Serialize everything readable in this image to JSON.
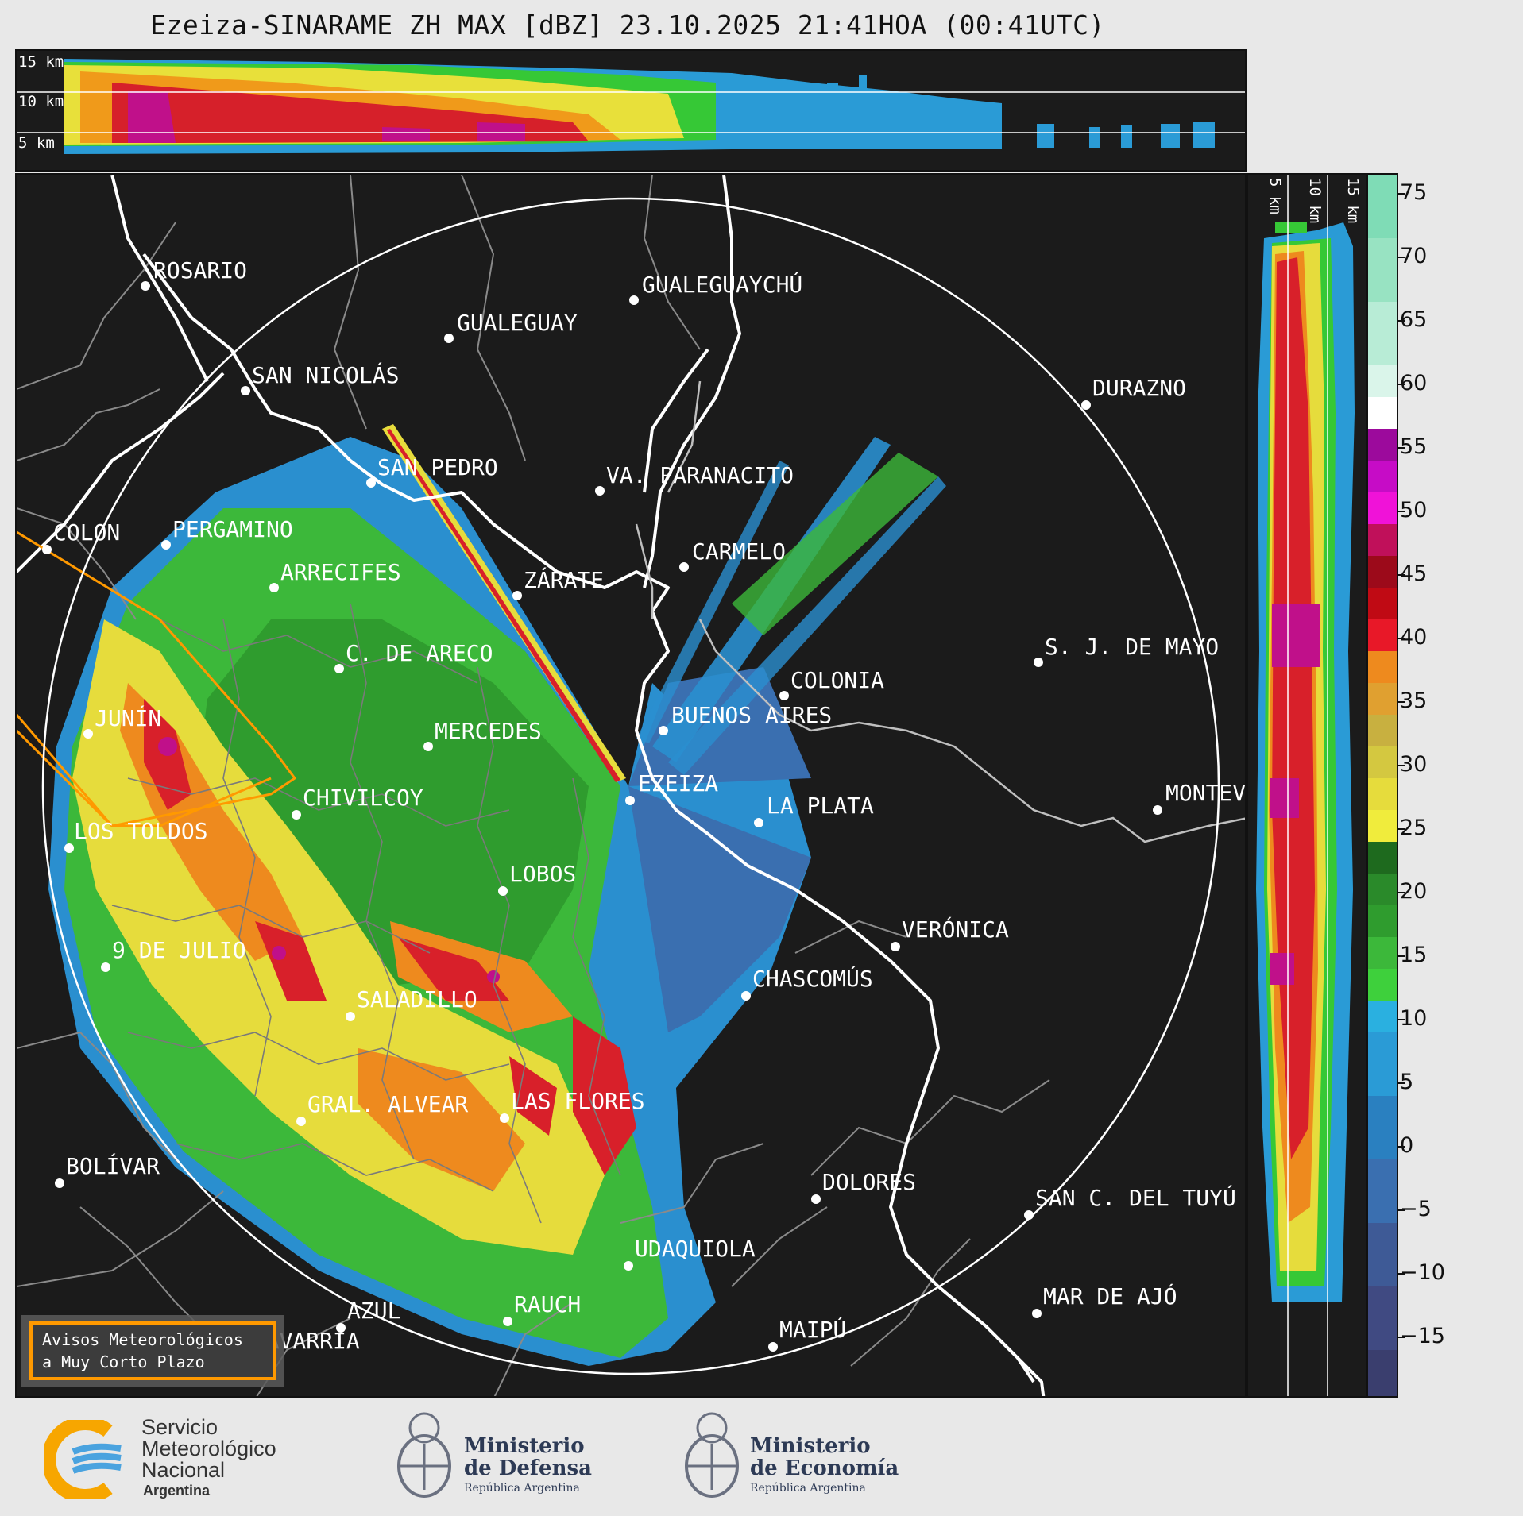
{
  "title": "Ezeiza-SINARAME ZH MAX [dBZ] 23.10.2025 21:41HOA (00:41UTC)",
  "top_panel": {
    "height_labels": [
      "15 km",
      "10 km",
      "5 km"
    ]
  },
  "side_panel": {
    "height_labels": [
      "5 km",
      "10 km",
      "15 km"
    ]
  },
  "colorbar": {
    "unit": "dBZ",
    "ticks": [
      "75",
      "70",
      "65",
      "60",
      "55",
      "50",
      "45",
      "40",
      "35",
      "30",
      "25",
      "20",
      "15",
      "10",
      "5",
      "0",
      "−5",
      "−10",
      "−15"
    ],
    "range": [
      -20,
      77
    ]
  },
  "cities": [
    {
      "name": "ROSARIO"
    },
    {
      "name": "GUALEGUAYCHÚ"
    },
    {
      "name": "GUALEGUAY"
    },
    {
      "name": "SAN NICOLÁS"
    },
    {
      "name": "DURAZNO"
    },
    {
      "name": "SAN PEDRO"
    },
    {
      "name": "VA. PARANACITO"
    },
    {
      "name": "COLON"
    },
    {
      "name": "PERGAMINO"
    },
    {
      "name": "CARMELO"
    },
    {
      "name": "ARRECIFES"
    },
    {
      "name": "ZÁRATE"
    },
    {
      "name": "S. J. DE MAYO"
    },
    {
      "name": "C. DE ARECO"
    },
    {
      "name": "COLONIA"
    },
    {
      "name": "JUNÍN"
    },
    {
      "name": "MERCEDES"
    },
    {
      "name": "BUENOS AIRES"
    },
    {
      "name": "EZEIZA"
    },
    {
      "name": "MONTEVIDEO"
    },
    {
      "name": "CHIVILCOY"
    },
    {
      "name": "LA PLATA"
    },
    {
      "name": "LOS TOLDOS"
    },
    {
      "name": "LOBOS"
    },
    {
      "name": "VERÓNICA"
    },
    {
      "name": "9 DE JULIO"
    },
    {
      "name": "CHASCOMÚS"
    },
    {
      "name": "SALADILLO"
    },
    {
      "name": "GRAL. ALVEAR"
    },
    {
      "name": "LAS FLORES"
    },
    {
      "name": "BOLÍVAR"
    },
    {
      "name": "DOLORES"
    },
    {
      "name": "SAN C. DEL TUYÚ"
    },
    {
      "name": "UDAQUIOLA"
    },
    {
      "name": "MAR DE AJÓ"
    },
    {
      "name": "AZUL"
    },
    {
      "name": "RAUCH"
    },
    {
      "name": "OLAVARRÍA"
    },
    {
      "name": "MAIPÚ"
    }
  ],
  "alert_box": {
    "line1": "Avisos Meteorológicos",
    "line2": "a Muy Corto Plazo",
    "border_color": "#ff9900"
  },
  "footer": {
    "smn": {
      "line1": "Servicio",
      "line2": "Meteorológico",
      "line3": "Nacional",
      "line4": "Argentina"
    },
    "defensa": {
      "line1": "Ministerio",
      "line2": "de Defensa",
      "line3": "República Argentina"
    },
    "economia": {
      "line1": "Ministerio",
      "line2": "de Economía",
      "line3": "República Argentina"
    }
  }
}
